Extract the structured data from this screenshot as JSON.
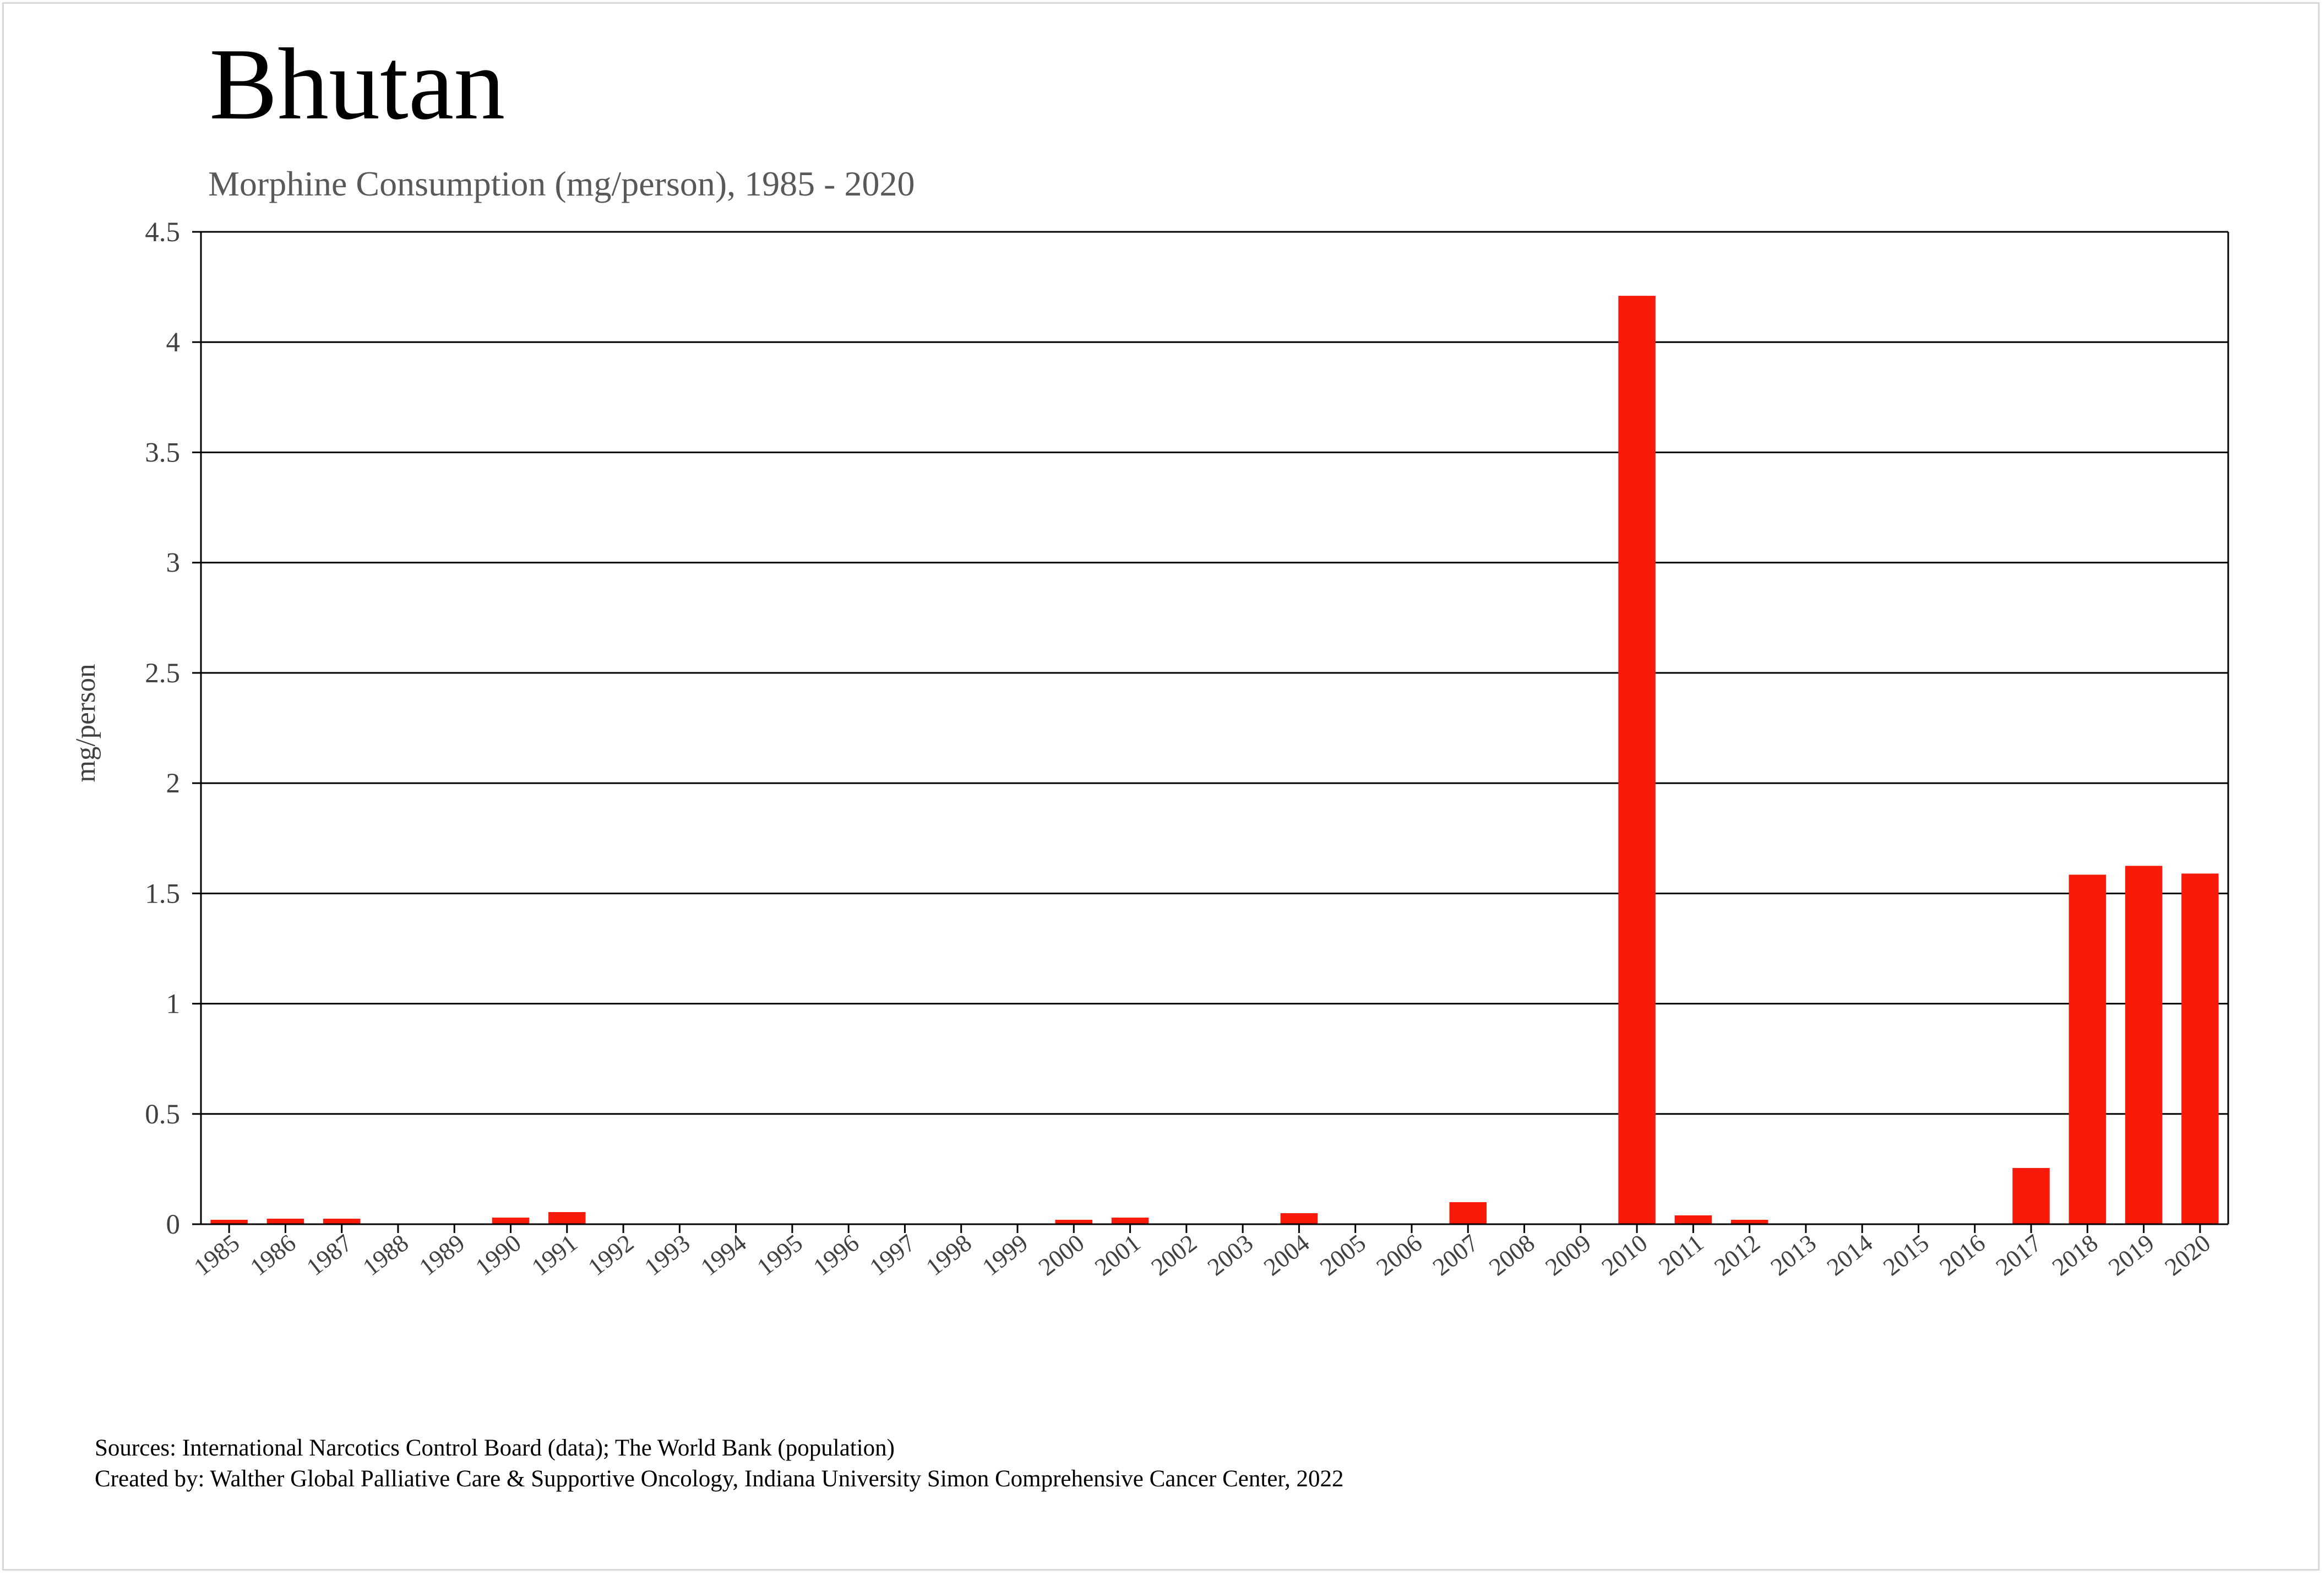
{
  "title": "Bhutan",
  "subtitle": "Morphine Consumption (mg/person), 1985 - 2020",
  "footer": {
    "sources": "Sources: International Narcotics Control Board (data); The World Bank (population)",
    "created_by": "Created by: Walther  Global Palliative Care & Supportive Oncology, Indiana University Simon Comprehensive Cancer Center, 2022"
  },
  "colors": {
    "bar": "#fa1a09",
    "grid": "#000000",
    "text": "#404040"
  },
  "chart_data": {
    "type": "bar",
    "title": "Bhutan",
    "subtitle": "Morphine Consumption (mg/person), 1985 - 2020",
    "xlabel": "",
    "ylabel": "mg/person",
    "ylim": [
      0,
      4.5
    ],
    "yticks": [
      "0",
      "0.5",
      "1",
      "1.5",
      "2",
      "2.5",
      "3",
      "3.5",
      "4",
      "4.5"
    ],
    "grid": true,
    "categories": [
      "1985",
      "1986",
      "1987",
      "1988",
      "1989",
      "1990",
      "1991",
      "1992",
      "1993",
      "1994",
      "1995",
      "1996",
      "1997",
      "1998",
      "1999",
      "2000",
      "2001",
      "2002",
      "2003",
      "2004",
      "2005",
      "2006",
      "2007",
      "2008",
      "2009",
      "2010",
      "2011",
      "2012",
      "2013",
      "2014",
      "2015",
      "2016",
      "2017",
      "2018",
      "2019",
      "2020"
    ],
    "values": [
      0.02,
      0.025,
      0.025,
      0,
      0,
      0.03,
      0.055,
      0,
      0,
      0,
      0,
      0,
      0,
      0,
      0,
      0.02,
      0.03,
      0,
      0,
      0.05,
      0,
      0,
      0.1,
      0,
      0,
      4.21,
      0.04,
      0.02,
      0,
      0,
      0,
      0,
      0.255,
      1.585,
      1.625,
      1.59
    ]
  }
}
